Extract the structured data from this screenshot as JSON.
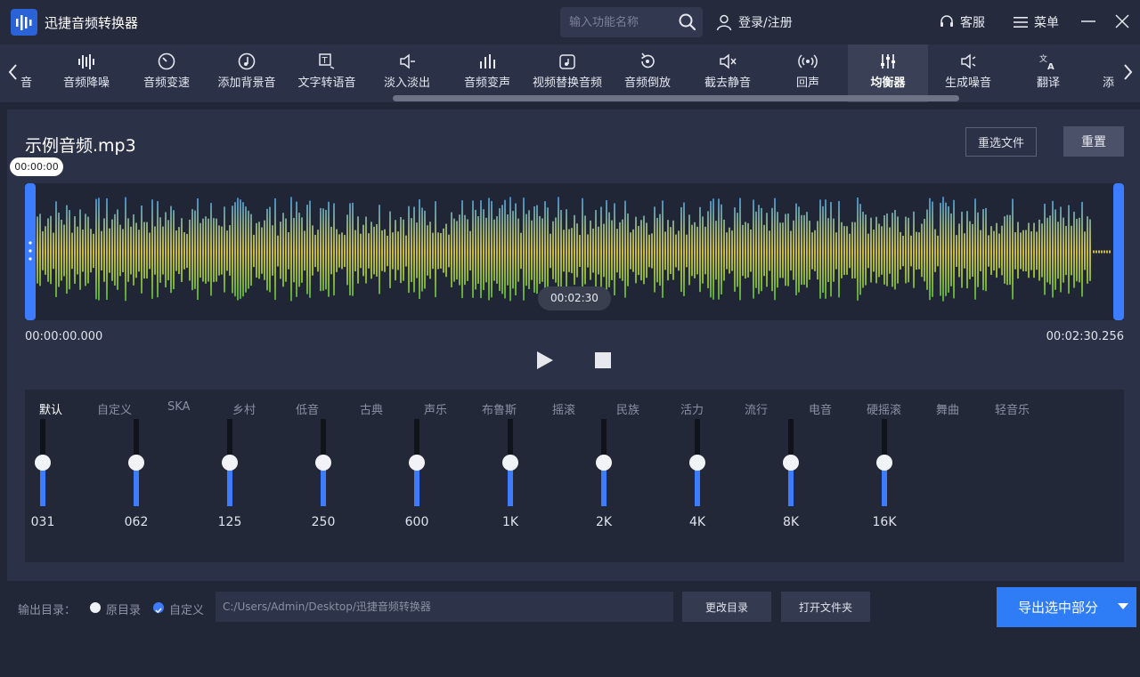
{
  "app": {
    "title": "迅捷音频转换器"
  },
  "header": {
    "search_placeholder": "输入功能名称",
    "login_label": "登录/注册",
    "service_label": "客服",
    "menu_label": "菜单"
  },
  "toolbar": {
    "items": [
      {
        "label": "音频降噪",
        "icon": "waveform-bars-icon"
      },
      {
        "label": "音频变速",
        "icon": "speedometer-icon"
      },
      {
        "label": "添加背景音",
        "icon": "music-note-circle-icon"
      },
      {
        "label": "文字转语音",
        "icon": "text-to-speech-icon"
      },
      {
        "label": "淡入淡出",
        "icon": "fade-speaker-icon"
      },
      {
        "label": "音频变声",
        "icon": "voice-change-icon"
      },
      {
        "label": "视频替换音频",
        "icon": "video-replace-icon"
      },
      {
        "label": "音频倒放",
        "icon": "reverse-play-icon"
      },
      {
        "label": "截去静音",
        "icon": "mute-cut-icon"
      },
      {
        "label": "回声",
        "icon": "echo-icon"
      },
      {
        "label": "均衡器",
        "icon": "equalizer-icon"
      },
      {
        "label": "生成噪音",
        "icon": "noise-icon"
      },
      {
        "label": "翻译",
        "icon": "translate-icon"
      }
    ],
    "left_partial": "音",
    "right_partial": "添",
    "active_index": 10
  },
  "file": {
    "name": "示例音频.mp3",
    "reselect_label": "重选文件",
    "reset_label": "重置"
  },
  "waveform": {
    "cursor_time": "00:00:00",
    "mid_time": "00:02:30",
    "start_time": "00:00:00.000",
    "end_time": "00:02:30.256"
  },
  "equalizer": {
    "presets": [
      "默认",
      "自定义",
      "SKA",
      "乡村",
      "低音",
      "古典",
      "声乐",
      "布鲁斯",
      "摇滚",
      "民族",
      "活力",
      "流行",
      "电音",
      "硬摇滚",
      "舞曲",
      "轻音乐"
    ],
    "active_preset": "默认",
    "bands": [
      {
        "freq": "031",
        "level": 0.5
      },
      {
        "freq": "062",
        "level": 0.5
      },
      {
        "freq": "125",
        "level": 0.5
      },
      {
        "freq": "250",
        "level": 0.5
      },
      {
        "freq": "600",
        "level": 0.5
      },
      {
        "freq": "1K",
        "level": 0.5
      },
      {
        "freq": "2K",
        "level": 0.5
      },
      {
        "freq": "4K",
        "level": 0.5
      },
      {
        "freq": "8K",
        "level": 0.5
      },
      {
        "freq": "16K",
        "level": 0.5
      }
    ]
  },
  "output": {
    "label": "输出目录：",
    "option_original": "原目录",
    "option_custom": "自定义",
    "selected": "自定义",
    "path": "C:/Users/Admin/Desktop/迅捷音频转换器",
    "change_dir_label": "更改目录",
    "open_folder_label": "打开文件夹",
    "export_label": "导出选中部分"
  },
  "colors": {
    "accent": "#3d7bff",
    "export": "#2e7cf6",
    "wave_top": "#3aa0ff",
    "wave_mid": "#f5e23a",
    "wave_bottom": "#3fc43a"
  }
}
